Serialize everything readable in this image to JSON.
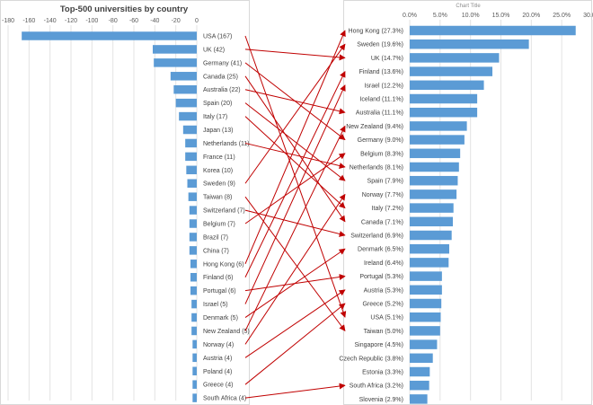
{
  "chart_data": [
    {
      "type": "bar",
      "orientation": "horizontal",
      "title": "Top-500 universities by country",
      "xlim": [
        -180,
        0
      ],
      "x_ticks": [
        "-180",
        "-160",
        "-140",
        "-120",
        "-100",
        "-80",
        "-60",
        "-40",
        "-20",
        "0"
      ],
      "grid": true,
      "categories": [
        "USA (167)",
        "UK (42)",
        "Germany (41)",
        "Canada (25)",
        "Australia (22)",
        "Spain (20)",
        "Italy (17)",
        "Japan (13)",
        "Netherlands (11)",
        "France (11)",
        "Korea (10)",
        "Sweden (9)",
        "Taiwan (8)",
        "Switzerland (7)",
        "Belgium (7)",
        "Brazil (7)",
        "China (7)",
        "Hong Kong (6)",
        "Finland (6)",
        "Portugal (6)",
        "Israel (5)",
        "Denmark (5)",
        "New Zealand (5)",
        "Norway (4)",
        "Austria (4)",
        "Poland (4)",
        "Greece (4)",
        "South Africa (4)"
      ],
      "values": [
        -167,
        -42,
        -41,
        -25,
        -22,
        -20,
        -17,
        -13,
        -11,
        -11,
        -10,
        -9,
        -8,
        -7,
        -7,
        -7,
        -7,
        -6,
        -6,
        -6,
        -5,
        -5,
        -5,
        -4,
        -4,
        -4,
        -4,
        -4
      ]
    },
    {
      "type": "bar",
      "orientation": "horizontal",
      "title": "Chart Title",
      "xlim": [
        0,
        30
      ],
      "x_ticks": [
        "0.0%",
        "5.0%",
        "10.0%",
        "15.0%",
        "20.0%",
        "25.0%",
        "30.0%"
      ],
      "grid": true,
      "categories": [
        "Hong Kong (27.3%)",
        "Sweden (19.6%)",
        "UK (14.7%)",
        "Finland (13.6%)",
        "Israel (12.2%)",
        "Iceland (11.1%)",
        "Australia (11.1%)",
        "New Zealand (9.4%)",
        "Germany (9.0%)",
        "Belgium (8.3%)",
        "Netherlands (8.1%)",
        "Spain (7.9%)",
        "Norway (7.7%)",
        "Italy (7.2%)",
        "Canada (7.1%)",
        "Switzerland (6.9%)",
        "Denmark (6.5%)",
        "Ireland (6.4%)",
        "Portugal (5.3%)",
        "Austria (5.3%)",
        "Greece (5.2%)",
        "USA (5.1%)",
        "Taiwan (5.0%)",
        "Singapore (4.5%)",
        "Czech Republic (3.8%)",
        "Estonia (3.3%)",
        "South Africa (3.2%)",
        "Slovenia (2.9%)"
      ],
      "values": [
        27.3,
        19.6,
        14.7,
        13.6,
        12.2,
        11.1,
        11.1,
        9.4,
        9.0,
        8.3,
        8.1,
        7.9,
        7.7,
        7.2,
        7.1,
        6.9,
        6.5,
        6.4,
        5.3,
        5.3,
        5.2,
        5.1,
        5.0,
        4.5,
        3.8,
        3.3,
        3.2,
        2.9
      ]
    }
  ],
  "connectors": [
    {
      "from": "USA",
      "to": "USA"
    },
    {
      "from": "UK",
      "to": "UK"
    },
    {
      "from": "Germany",
      "to": "Germany"
    },
    {
      "from": "Canada",
      "to": "Canada"
    },
    {
      "from": "Australia",
      "to": "Australia"
    },
    {
      "from": "Spain",
      "to": "Spain"
    },
    {
      "from": "Italy",
      "to": "Italy"
    },
    {
      "from": "Netherlands",
      "to": "Netherlands"
    },
    {
      "from": "Sweden",
      "to": "Sweden"
    },
    {
      "from": "Taiwan",
      "to": "Taiwan"
    },
    {
      "from": "Switzerland",
      "to": "Switzerland"
    },
    {
      "from": "Belgium",
      "to": "Belgium"
    },
    {
      "from": "Hong Kong",
      "to": "Hong Kong"
    },
    {
      "from": "Finland",
      "to": "Finland"
    },
    {
      "from": "Portugal",
      "to": "Portugal"
    },
    {
      "from": "Israel",
      "to": "Israel"
    },
    {
      "from": "Denmark",
      "to": "Denmark"
    },
    {
      "from": "New Zealand",
      "to": "New Zealand"
    },
    {
      "from": "Norway",
      "to": "Norway"
    },
    {
      "from": "Austria",
      "to": "Austria"
    },
    {
      "from": "Greece",
      "to": "Greece"
    },
    {
      "from": "South Africa",
      "to": "South Africa"
    }
  ],
  "colors": {
    "bar": "#5b9bd5",
    "arrow": "#c00000",
    "grid": "#e3e3e3",
    "text": "#404040"
  }
}
